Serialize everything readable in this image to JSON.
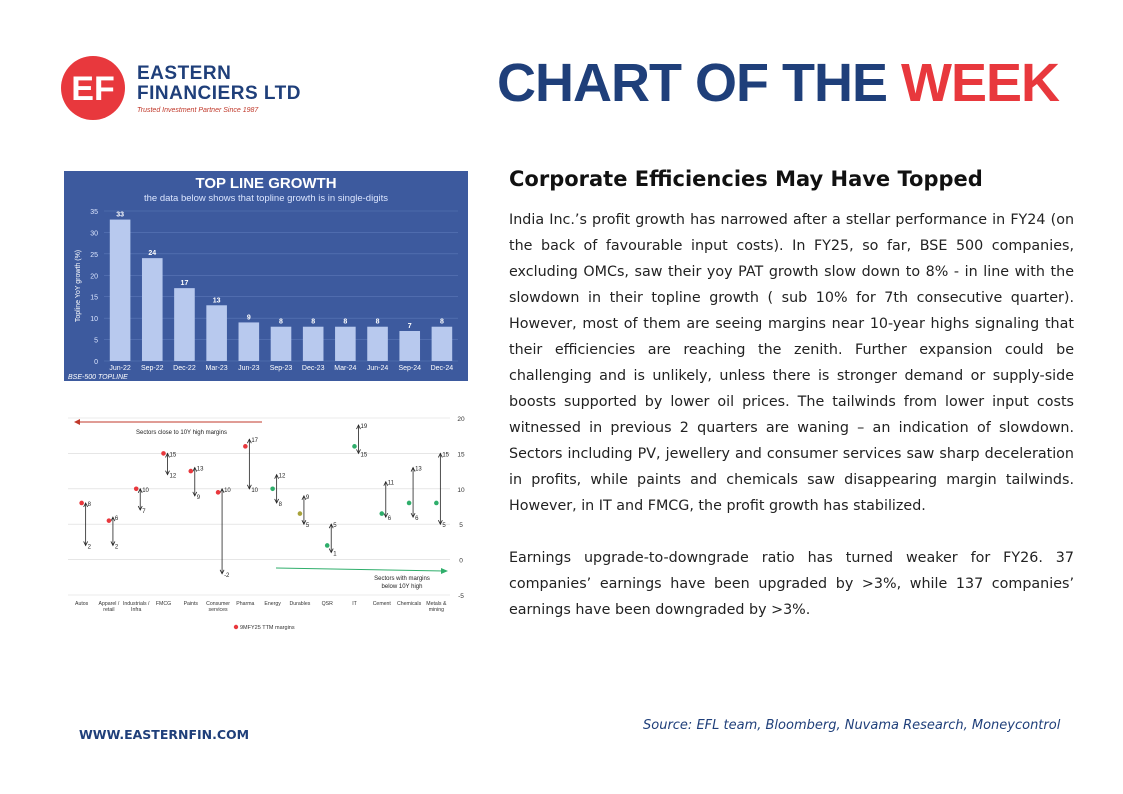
{
  "brand": {
    "line1": "EASTERN",
    "line2": "FINANCIERS LTD",
    "tagline": "Trusted Investment Partner Since 1987",
    "logo_letters": "EF",
    "colors": {
      "navy": "#1f3f7a",
      "red": "#e8383d"
    }
  },
  "headline": {
    "part1": "CHART OF THE ",
    "part2": "WEEK"
  },
  "chart_data": [
    {
      "type": "bar",
      "title": "TOP LINE GROWTH",
      "subtitle": "the data below shows that topline growth is in single-digits",
      "ylabel": "Topline YoY growth (%)",
      "xlabel": "",
      "source_label": "BSE-500 TOPLINE",
      "ylim": [
        0,
        35
      ],
      "yticks": [
        0,
        5,
        10,
        15,
        20,
        25,
        30,
        35
      ],
      "categories": [
        "Jun-22",
        "Sep-22",
        "Dec-22",
        "Mar-23",
        "Jun-23",
        "Sep-23",
        "Dec-23",
        "Mar-24",
        "Jun-24",
        "Sep-24",
        "Dec-24"
      ],
      "values": [
        33,
        24,
        17,
        13,
        9,
        8,
        8,
        8,
        8,
        7,
        8
      ]
    },
    {
      "type": "scatter",
      "title": "",
      "xlabel": "",
      "ylabel": "",
      "ylim": [
        -5,
        20
      ],
      "yticks": [
        -5,
        0,
        5,
        10,
        15,
        20
      ],
      "legend": "9MFY25 TTM margins",
      "annotation_left": "Sectors close to 10Y high margins",
      "annotation_right_line1": "Sectors with margins",
      "annotation_right_line2": "below 10Y high",
      "categories": [
        "Autos",
        "Apparel / retail",
        "Industrials / Infra",
        "FMCG",
        "Paints",
        "Consumer services",
        "Pharma",
        "Energy",
        "Durables",
        "QSR",
        "IT",
        "Cement",
        "Chemicals",
        "Metals & mining"
      ],
      "margin": [
        8,
        5.5,
        10,
        15,
        12.5,
        9.5,
        16,
        10,
        6.5,
        2,
        16,
        6.5,
        8,
        8
      ],
      "high": [
        8,
        6,
        10,
        15,
        13,
        10,
        17,
        12,
        9,
        5,
        19,
        11,
        13,
        15
      ],
      "low": [
        2,
        2,
        7,
        12,
        9,
        -2,
        10,
        8,
        5,
        1,
        15,
        6,
        6,
        5
      ],
      "marker_color": [
        "red",
        "red",
        "red",
        "red",
        "red",
        "red",
        "red",
        "green",
        "olive",
        "green",
        "green",
        "green",
        "green",
        "green"
      ]
    }
  ],
  "article": {
    "title": "Corporate Efficiencies May Have Topped",
    "p1": "India Inc.’s profit growth has narrowed after a stellar performance in FY24 (on the back of favourable input costs). In FY25, so far, BSE 500 companies, excluding OMCs, saw their yoy PAT growth slow down to 8% - in line with the slowdown in their topline growth ( sub 10% for 7th consecutive quarter). However, most of them are seeing margins near 10-year highs signaling that their efficiencies are reaching the zenith. Further expansion could be challenging and is unlikely, unless there is stronger demand or supply-side boosts supported by lower oil prices. The tailwinds from lower input costs witnessed in previous 2 quarters are waning – an indication of slowdown. Sectors including PV, jewellery and consumer services saw sharp deceleration in profits, while paints and chemicals saw disappearing margin tailwinds. However, in IT and FMCG, the profit growth has stabilized.",
    "p2": "Earnings upgrade-to-downgrade ratio has turned weaker for FY26. 37 companies’ earnings have been upgraded by >3%, while 137 companies’ earnings have been downgraded by >3%."
  },
  "footer": {
    "website": "WWW.EASTERNFIN.COM",
    "source": "Source: EFL team, Bloomberg, Nuvama Research, Moneycontrol"
  }
}
